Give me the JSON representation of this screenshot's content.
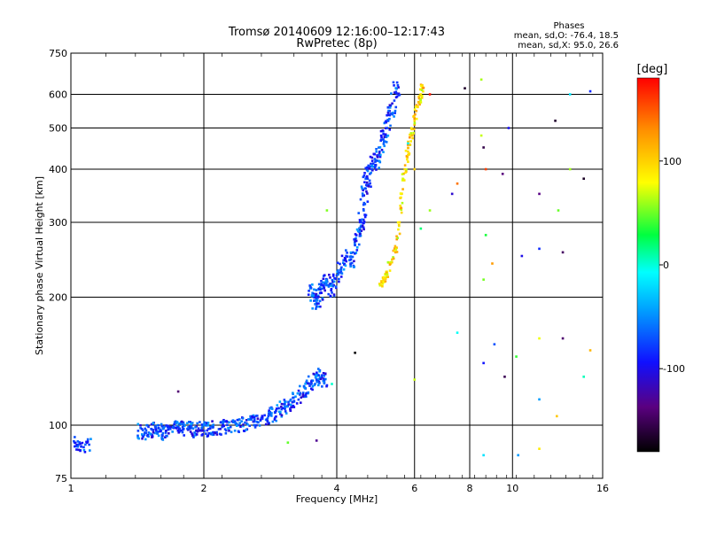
{
  "chart_data": {
    "type": "scatter",
    "title": "Tromsø 20140609 12:16:00–12:17:43",
    "subtitle": "RwPretec (8p)",
    "xlabel": "Frequency [MHz]",
    "ylabel": "Stationary phase Virtual Height [km]",
    "x_scale": "log",
    "y_scale": "log",
    "xlim": [
      1,
      16
    ],
    "ylim": [
      75,
      750
    ],
    "x_ticks": [
      1,
      2,
      4,
      6,
      8,
      10,
      16
    ],
    "y_ticks": [
      75,
      100,
      200,
      300,
      400,
      500,
      600,
      750
    ],
    "grid": true,
    "phase_stats": {
      "header": "Phases",
      "line_o": "mean, sd,O: -76.4, 18.5",
      "line_x": "mean, sd,X:  95.0, 26.6"
    },
    "colorbar": {
      "label": "[deg]",
      "range": [
        -180,
        180
      ],
      "ticks": [
        100,
        0,
        -100
      ]
    },
    "trace_O": {
      "name": "",
      "mean_phase": -76.4,
      "points": [
        [
          1.02,
          91
        ],
        [
          1.04,
          90
        ],
        [
          1.1,
          90
        ],
        [
          1.42,
          97
        ],
        [
          1.47,
          96
        ],
        [
          1.52,
          98
        ],
        [
          1.56,
          97
        ],
        [
          1.6,
          97
        ],
        [
          1.64,
          96
        ],
        [
          1.68,
          98
        ],
        [
          1.75,
          99
        ],
        [
          1.8,
          98
        ],
        [
          1.86,
          98
        ],
        [
          1.92,
          97
        ],
        [
          1.98,
          98
        ],
        [
          2.05,
          98
        ],
        [
          2.1,
          99
        ],
        [
          2.2,
          99
        ],
        [
          2.3,
          99
        ],
        [
          2.4,
          100
        ],
        [
          2.5,
          101
        ],
        [
          2.6,
          102
        ],
        [
          2.7,
          104
        ],
        [
          2.8,
          105
        ],
        [
          2.9,
          107
        ],
        [
          3.0,
          109
        ],
        [
          3.1,
          111
        ],
        [
          3.2,
          114
        ],
        [
          3.3,
          118
        ],
        [
          3.4,
          122
        ],
        [
          3.5,
          125
        ],
        [
          3.6,
          128
        ],
        [
          3.7,
          131
        ],
        [
          3.75,
          128
        ],
        [
          3.5,
          210
        ],
        [
          3.55,
          200
        ],
        [
          3.6,
          190
        ],
        [
          3.68,
          205
        ],
        [
          3.75,
          215
        ],
        [
          3.8,
          220
        ],
        [
          3.9,
          205
        ],
        [
          4.0,
          225
        ],
        [
          4.1,
          235
        ],
        [
          4.2,
          250
        ],
        [
          4.3,
          240
        ],
        [
          4.4,
          265
        ],
        [
          4.5,
          285
        ],
        [
          4.55,
          300
        ],
        [
          4.6,
          330
        ],
        [
          4.65,
          360
        ],
        [
          4.7,
          380
        ],
        [
          4.8,
          400
        ],
        [
          4.9,
          420
        ],
        [
          5.0,
          440
        ],
        [
          5.1,
          470
        ],
        [
          5.2,
          500
        ],
        [
          5.3,
          540
        ],
        [
          5.4,
          580
        ],
        [
          5.5,
          630
        ]
      ]
    },
    "trace_X": {
      "name": "",
      "mean_phase": 95.0,
      "points": [
        [
          5.0,
          215
        ],
        [
          5.1,
          220
        ],
        [
          5.2,
          228
        ],
        [
          5.3,
          240
        ],
        [
          5.45,
          260
        ],
        [
          5.55,
          300
        ],
        [
          5.6,
          350
        ],
        [
          5.7,
          400
        ],
        [
          5.8,
          440
        ],
        [
          5.9,
          480
        ],
        [
          6.0,
          520
        ],
        [
          6.1,
          560
        ],
        [
          6.2,
          600
        ],
        [
          6.25,
          630
        ]
      ]
    },
    "noise": [
      [
        6.5,
        600
      ],
      [
        7.8,
        620
      ],
      [
        8.5,
        650
      ],
      [
        9.8,
        500
      ],
      [
        13.5,
        600
      ],
      [
        15.0,
        610
      ],
      [
        12.5,
        520
      ],
      [
        8.5,
        480
      ],
      [
        8.6,
        450
      ],
      [
        7.5,
        370
      ],
      [
        7.3,
        350
      ],
      [
        8.7,
        400
      ],
      [
        9.5,
        390
      ],
      [
        11.5,
        350
      ],
      [
        13.5,
        400
      ],
      [
        14.5,
        380
      ],
      [
        12.7,
        320
      ],
      [
        8.7,
        280
      ],
      [
        10.5,
        250
      ],
      [
        11.5,
        260
      ],
      [
        13.0,
        255
      ],
      [
        9.0,
        240
      ],
      [
        8.6,
        220
      ],
      [
        7.5,
        165
      ],
      [
        9.1,
        155
      ],
      [
        11.5,
        160
      ],
      [
        13.0,
        160
      ],
      [
        15.0,
        150
      ],
      [
        8.6,
        140
      ],
      [
        10.2,
        145
      ],
      [
        11.5,
        115
      ],
      [
        14.5,
        130
      ],
      [
        12.6,
        105
      ],
      [
        9.6,
        130
      ],
      [
        6.0,
        128
      ],
      [
        8.6,
        85
      ],
      [
        10.3,
        85
      ],
      [
        11.5,
        88
      ],
      [
        6.2,
        290
      ],
      [
        6.5,
        320
      ],
      [
        6.0,
        400
      ],
      [
        5.8,
        460
      ],
      [
        3.8,
        320
      ],
      [
        3.9,
        125
      ],
      [
        4.4,
        148
      ],
      [
        2.6,
        100
      ],
      [
        3.1,
        91
      ],
      [
        3.6,
        92
      ],
      [
        1.75,
        120
      ]
    ]
  }
}
